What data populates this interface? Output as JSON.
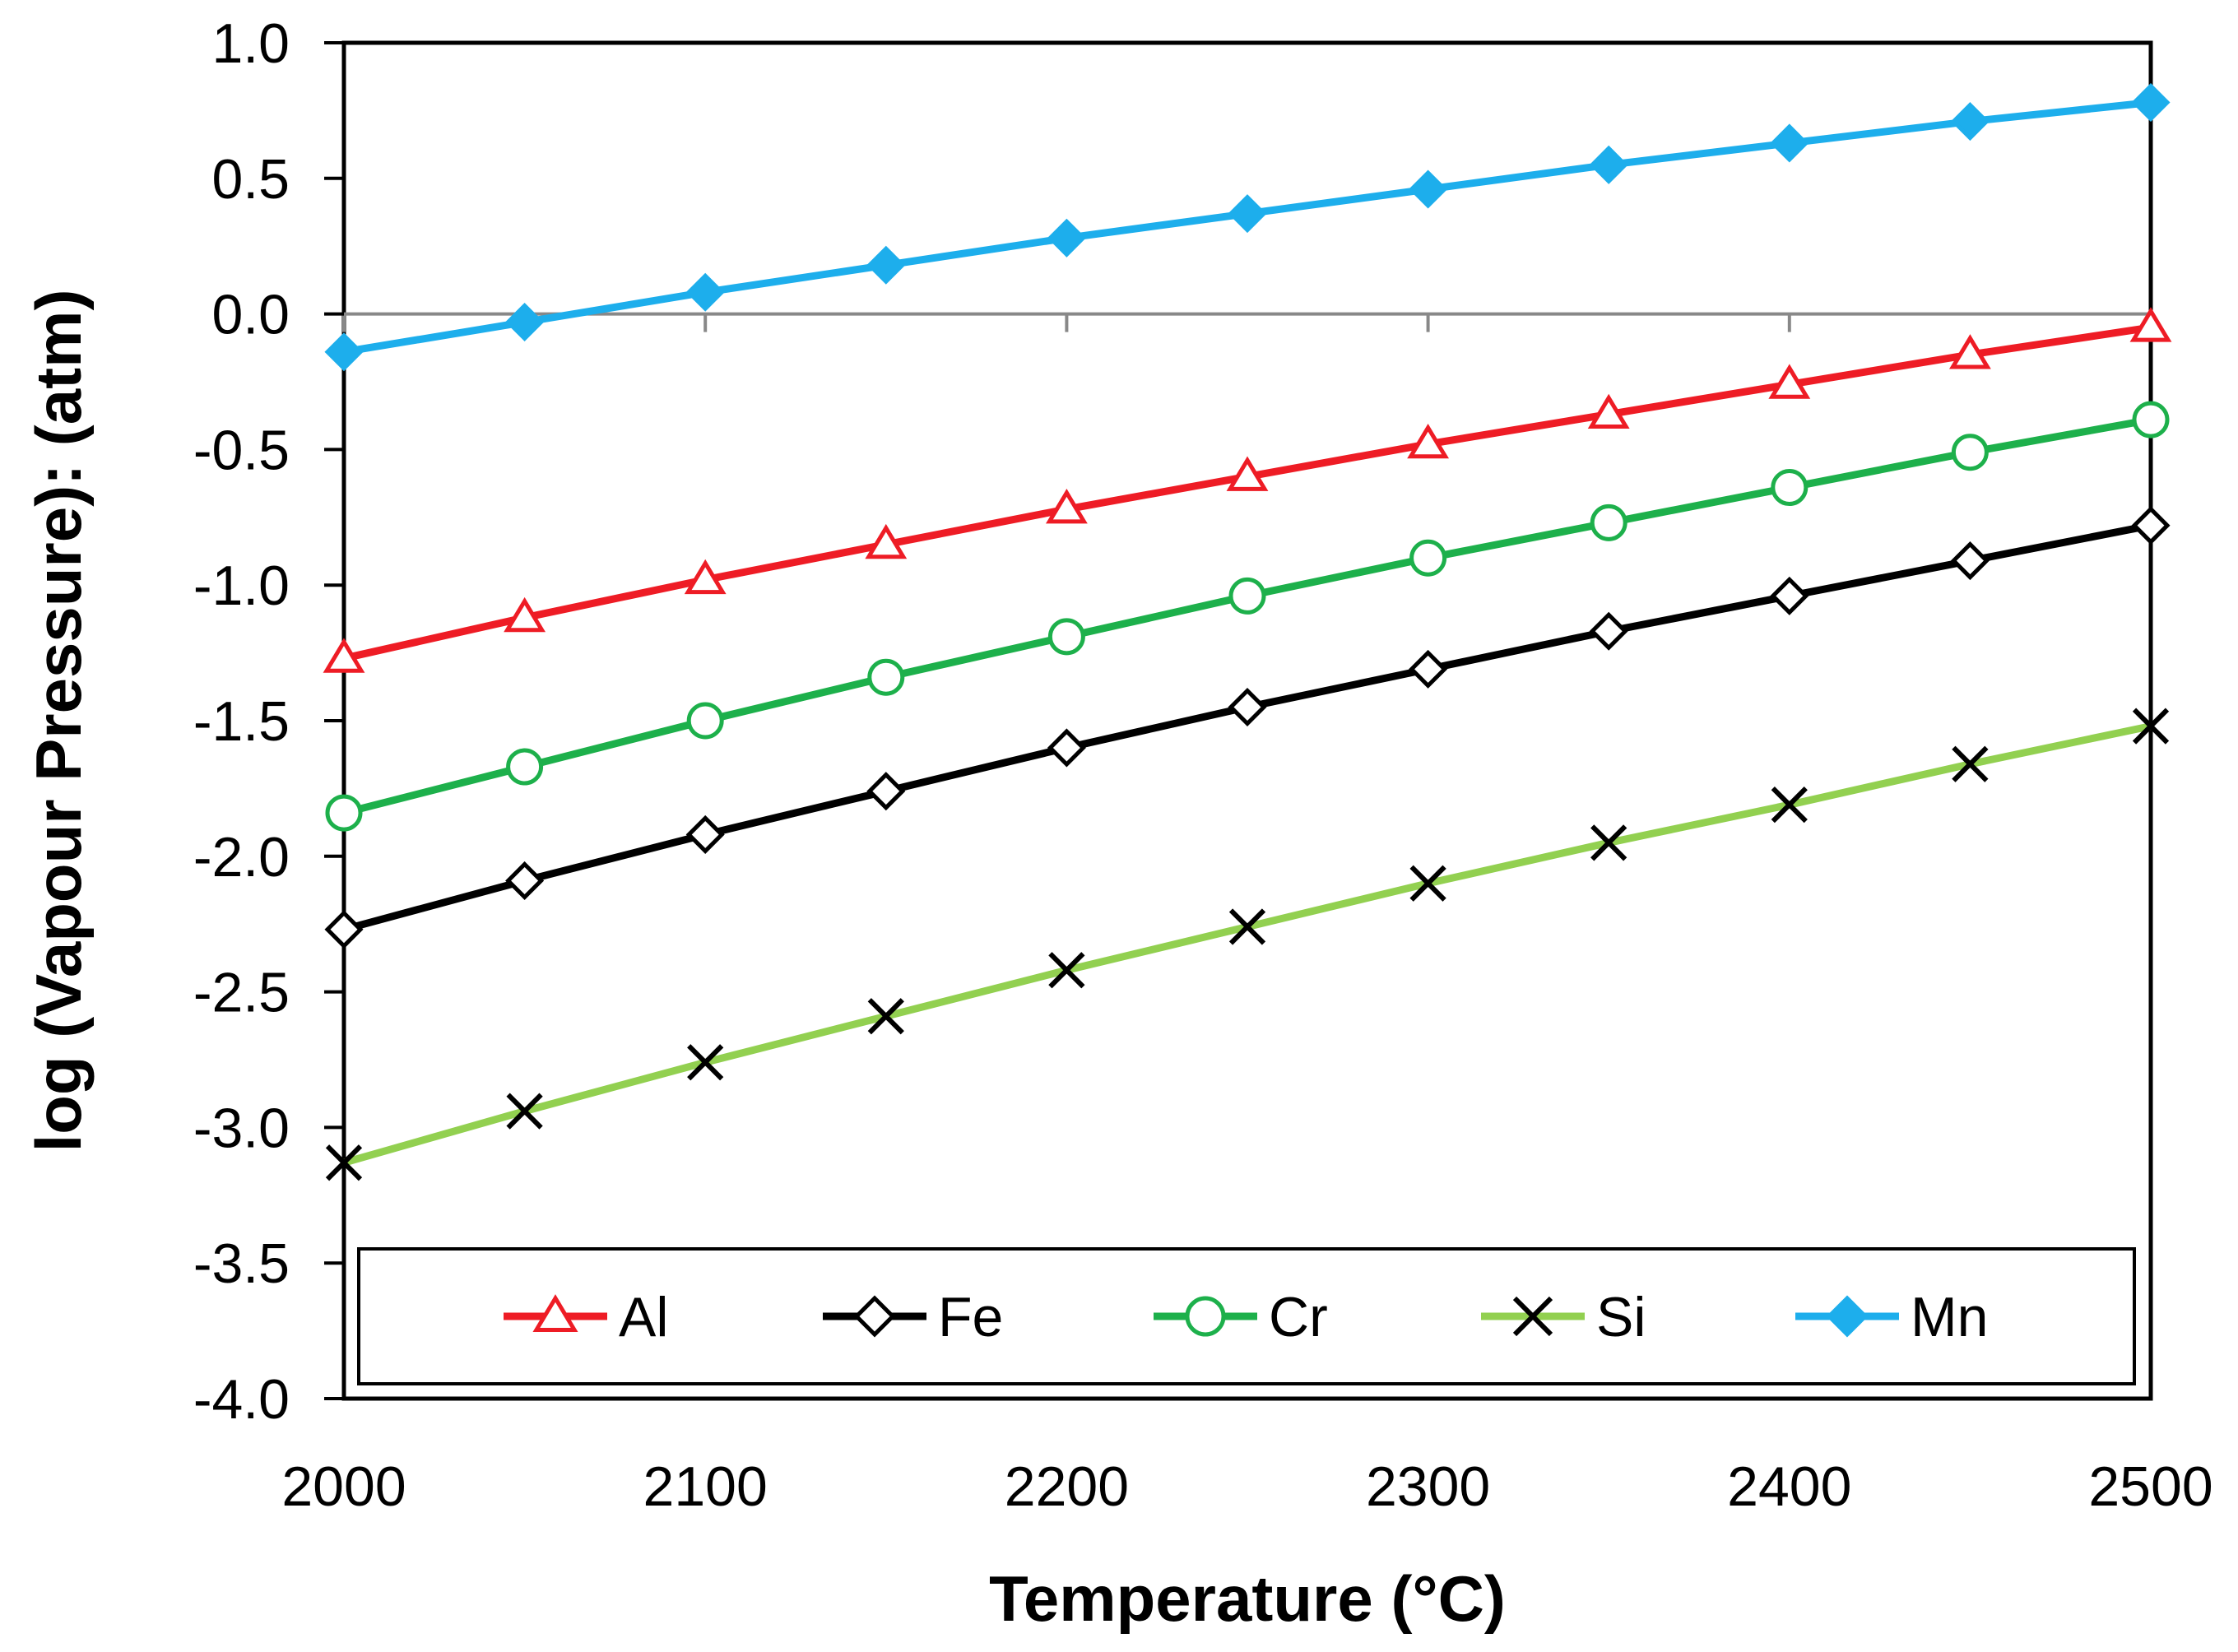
{
  "chart_data": {
    "type": "line",
    "title": "",
    "xlabel": "Temperature (°C)",
    "ylabel": "log (Vapour Pressure): (atm)",
    "xlim": [
      2000,
      2500
    ],
    "ylim": [
      -4.0,
      1.0
    ],
    "x_ticks": [
      2000,
      2100,
      2200,
      2300,
      2400,
      2500
    ],
    "x_tick_labels": [
      "2000",
      "2100",
      "2200",
      "2300",
      "2400",
      "2500"
    ],
    "y_ticks": [
      1.0,
      0.5,
      0.0,
      -0.5,
      -1.0,
      -1.5,
      -2.0,
      -2.5,
      -3.0,
      -3.5,
      -4.0
    ],
    "y_tick_labels": [
      "1.0",
      "0.5",
      "0.0",
      "-0.5",
      "-1.0",
      "-1.5",
      "-2.0",
      "-2.5",
      "-3.0",
      "-3.5",
      "-4.0"
    ],
    "grid": false,
    "legend_position": "bottom-inside",
    "x": [
      2000,
      2050,
      2100,
      2150,
      2200,
      2250,
      2300,
      2350,
      2400,
      2450,
      2500
    ],
    "series": [
      {
        "name": "Al",
        "color": "#ee1c25",
        "marker": "triangle-open",
        "values": [
          -1.27,
          -1.12,
          -0.98,
          -0.85,
          -0.72,
          -0.6,
          -0.48,
          -0.37,
          -0.26,
          -0.15,
          -0.05
        ]
      },
      {
        "name": "Fe",
        "color": "#000000",
        "marker": "diamond-open",
        "values": [
          -2.27,
          -2.09,
          -1.92,
          -1.76,
          -1.6,
          -1.45,
          -1.31,
          -1.17,
          -1.04,
          -0.91,
          -0.78
        ]
      },
      {
        "name": "Cr",
        "color": "#1db04b",
        "marker": "circle-open",
        "values": [
          -1.84,
          -1.67,
          -1.5,
          -1.34,
          -1.19,
          -1.04,
          -0.9,
          -0.77,
          -0.64,
          -0.51,
          -0.39
        ]
      },
      {
        "name": "Si",
        "color": "#92d050",
        "marker": "x",
        "marker_color": "#000000",
        "values": [
          -3.13,
          -2.94,
          -2.76,
          -2.59,
          -2.42,
          -2.26,
          -2.1,
          -1.95,
          -1.81,
          -1.66,
          -1.52
        ]
      },
      {
        "name": "Mn",
        "color": "#1daeec",
        "marker": "diamond-filled",
        "values": [
          -0.14,
          -0.03,
          0.08,
          0.18,
          0.28,
          0.37,
          0.46,
          0.55,
          0.63,
          0.71,
          0.78
        ]
      }
    ]
  }
}
